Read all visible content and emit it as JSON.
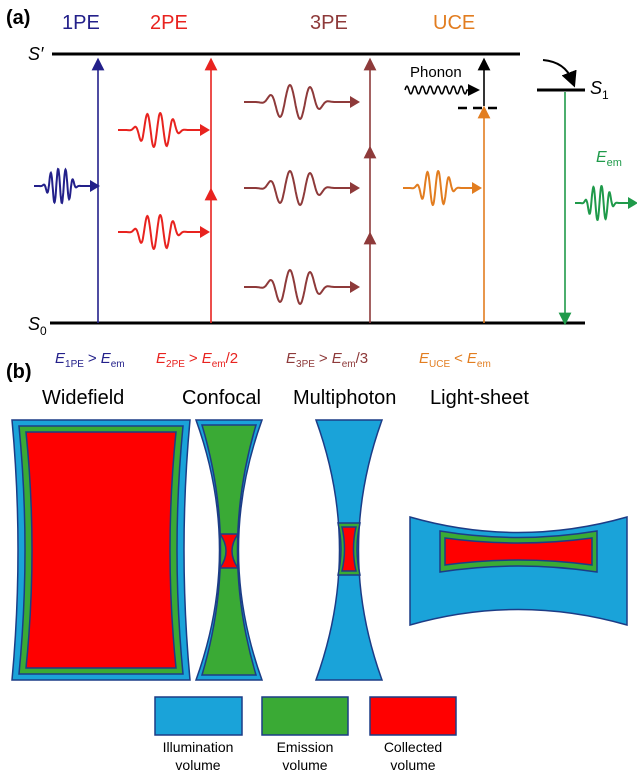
{
  "panel_a": {
    "label": "(a)",
    "processes": [
      "1PE",
      "2PE",
      "3PE",
      "UCE"
    ],
    "levels": {
      "excited": {
        "symbol": "S",
        "prime": "′"
      },
      "s1": {
        "symbol": "S",
        "subscript": "1"
      },
      "s0": {
        "symbol": "S",
        "subscript": "0"
      }
    },
    "phonon": "Phonon",
    "emission": {
      "symbol": "E",
      "subscript": "em"
    },
    "relations": [
      {
        "lhs": "E",
        "lhs_sub": "1PE",
        "op": ">",
        "rhs": "E",
        "rhs_sub": "em"
      },
      {
        "lhs": "E",
        "lhs_sub": "2PE",
        "op": ">",
        "rhs": "E",
        "rhs_sub": "em",
        "rhs_tail": "/2"
      },
      {
        "lhs": "E",
        "lhs_sub": "3PE",
        "op": ">",
        "rhs": "E",
        "rhs_sub": "em",
        "rhs_tail": "/3"
      },
      {
        "lhs": "E",
        "lhs_sub": "UCE",
        "op": "<",
        "rhs": "E",
        "rhs_sub": "em"
      }
    ]
  },
  "panel_b": {
    "label": "(b)",
    "modalities": [
      "Widefield",
      "Confocal",
      "Multiphoton",
      "Light-sheet"
    ],
    "legend": [
      {
        "lines": [
          "Illumination",
          "volume"
        ]
      },
      {
        "lines": [
          "Emission",
          "volume"
        ]
      },
      {
        "lines": [
          "Collected",
          "volume"
        ]
      }
    ]
  }
}
